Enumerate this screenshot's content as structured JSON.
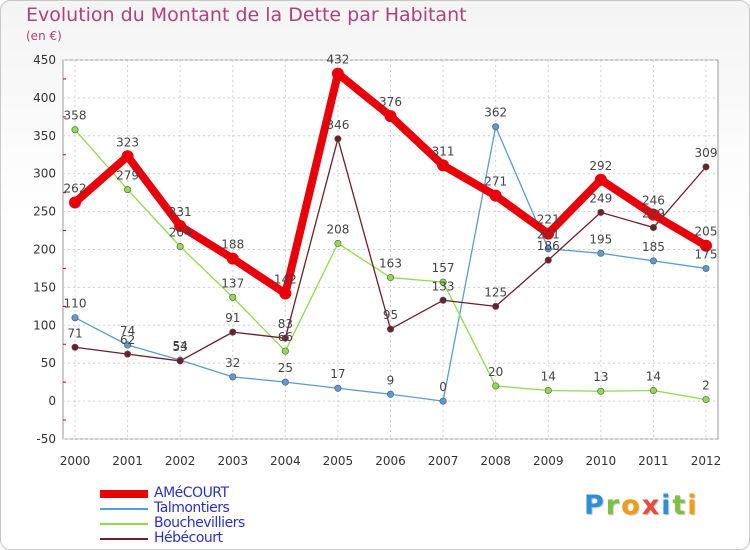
{
  "title": "Evolution du Montant de la Dette par Habitant",
  "subtitle": "(en €)",
  "logo_text": "Proxiti",
  "chart_data": {
    "type": "line",
    "x": [
      "2000",
      "2001",
      "2002",
      "2003",
      "2004",
      "2005",
      "2006",
      "2007",
      "2008",
      "2009",
      "2010",
      "2011",
      "2012"
    ],
    "ylim": [
      -50,
      450
    ],
    "yticks": [
      -50,
      0,
      50,
      100,
      150,
      200,
      250,
      300,
      350,
      400,
      450
    ],
    "grid": true,
    "legend_position": "bottom-left",
    "series": [
      {
        "name": "AMéCOURT",
        "color": "#e8000b",
        "values": [
          262,
          323,
          231,
          188,
          142,
          432,
          376,
          311,
          271,
          221,
          292,
          246,
          205
        ],
        "labels": [
          "262",
          "323",
          "231",
          "188",
          "142",
          "432",
          "376",
          "311",
          "271",
          "221",
          "292",
          "246",
          "205"
        ]
      },
      {
        "name": "Talmontiers",
        "color": "#5b9bd5",
        "values": [
          110,
          74,
          54,
          32,
          25,
          17,
          9,
          0,
          362,
          201,
          195,
          185,
          175
        ],
        "labels": [
          "110",
          "74",
          "54",
          "32",
          "25",
          "17",
          "9",
          "0",
          "362",
          "201",
          "195",
          "185",
          "175"
        ]
      },
      {
        "name": "Bouchevilliers",
        "color": "#8fdc4a",
        "values": [
          358,
          279,
          204,
          137,
          66,
          208,
          163,
          157,
          20,
          14,
          13,
          14,
          2
        ],
        "labels": [
          "358",
          "279",
          "204",
          "137",
          "66",
          "208",
          "163",
          "157",
          "20",
          "14",
          "13",
          "14",
          "2"
        ]
      },
      {
        "name": "Hébécourt",
        "color": "#6e1f2a",
        "values": [
          71,
          62,
          53,
          91,
          83,
          346,
          95,
          133,
          125,
          186,
          249,
          229,
          309
        ],
        "labels": [
          "71",
          "62",
          "53",
          "91",
          "83",
          "346",
          "95",
          "133",
          "125",
          "186",
          "249",
          "229",
          "309"
        ]
      }
    ]
  }
}
